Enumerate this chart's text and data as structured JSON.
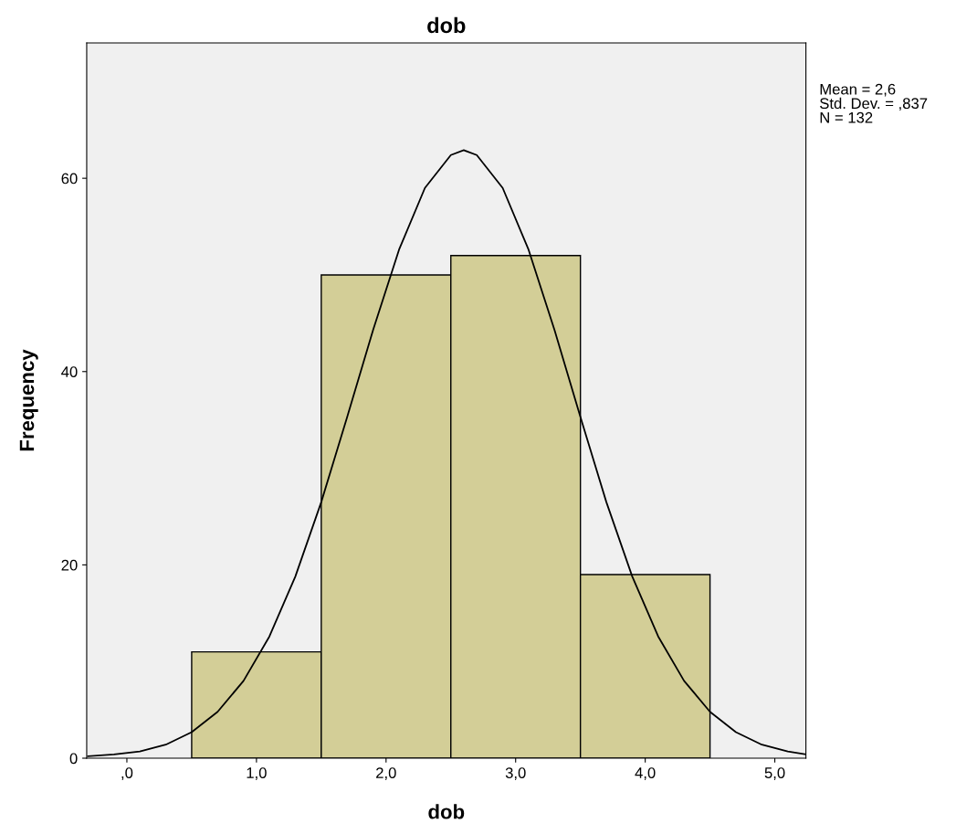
{
  "chart_data": {
    "type": "histogram",
    "title": "dob",
    "xlabel": "dob",
    "ylabel": "Frequency",
    "bins": [
      0.5,
      1.5,
      2.5,
      3.5,
      4.5
    ],
    "values": [
      11,
      50,
      52,
      19
    ],
    "color": "#d3ce97",
    "series": [
      {
        "type": "line",
        "color": "#000000",
        "x": [
          -0.3,
          -0.1,
          0.1,
          0.3,
          0.5,
          0.7,
          0.9,
          1.1,
          1.3,
          1.5,
          1.7,
          1.9,
          2.1,
          2.3,
          2.5,
          2.6,
          2.7,
          2.9,
          3.1,
          3.3,
          3.5,
          3.7,
          3.9,
          4.1,
          4.3,
          4.5,
          4.7,
          4.9,
          5.1,
          5.24
        ],
        "values": [
          0.2,
          0.4,
          0.7,
          1.4,
          2.7,
          4.8,
          8.0,
          12.6,
          18.8,
          26.5,
          35.3,
          44.3,
          52.6,
          59.0,
          62.4,
          62.9,
          62.4,
          59.0,
          52.6,
          44.3,
          35.3,
          26.5,
          18.8,
          12.6,
          8.0,
          4.8,
          2.7,
          1.4,
          0.7,
          0.4
        ]
      }
    ],
    "xlim": [
      -0.31,
      5.24
    ],
    "ylim": [
      0,
      74
    ],
    "xticks": [
      {
        "value": 0,
        "label": ",0"
      },
      {
        "value": 1,
        "label": "1,0"
      },
      {
        "value": 2,
        "label": "2,0"
      },
      {
        "value": 3,
        "label": "3,0"
      },
      {
        "value": 4,
        "label": "4,0"
      },
      {
        "value": 5,
        "label": "5,0"
      }
    ],
    "yticks": [
      0,
      20,
      40,
      60
    ],
    "annotations": [
      "Mean = 2,6\nStd. Dev. = ,837\nN = 132"
    ],
    "grid": false,
    "legend": false
  }
}
